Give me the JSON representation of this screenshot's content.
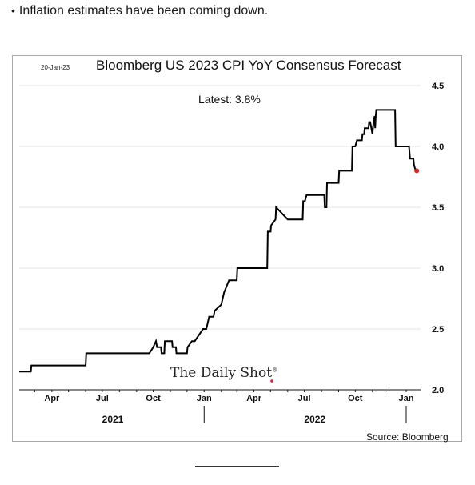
{
  "bullet": "Inflation estimates have been coming down.",
  "chart_data": {
    "type": "line",
    "title": "Bloomberg US 2023 CPI YoY Consensus Forecast",
    "date_stamp": "20-Jan-23",
    "annotation": "Latest:  3.8%",
    "source": "Source: Bloomberg",
    "watermark": "The Daily Shot",
    "watermark_mark": "®",
    "ylim": [
      2.0,
      4.5
    ],
    "y_ticks": [
      "4.5",
      "4.0",
      "3.5",
      "3.0",
      "2.5",
      "2.0"
    ],
    "x_ticks": [
      "Apr",
      "Jul",
      "Oct",
      "Jan",
      "Apr",
      "Jul",
      "Oct",
      "Jan"
    ],
    "year_labels": [
      "2021",
      "2022"
    ],
    "grid": true,
    "latest_marker_color": "#e02020",
    "line_color": "#000000",
    "series": [
      {
        "x": [
          "2021-02-01",
          "2021-02-22",
          "2021-02-23",
          "2021-06-01",
          "2021-06-02",
          "2021-09-24",
          "2021-10-01",
          "2021-10-06",
          "2021-10-08",
          "2021-10-15",
          "2021-10-16",
          "2021-10-21",
          "2021-10-22",
          "2021-11-04",
          "2021-11-05",
          "2021-11-11",
          "2021-11-12",
          "2021-12-01",
          "2021-12-02",
          "2021-12-10",
          "2021-12-15",
          "2021-12-30",
          "2022-01-05",
          "2022-01-10",
          "2022-01-12",
          "2022-01-18",
          "2022-01-20",
          "2022-02-01",
          "2022-02-06",
          "2022-02-15",
          "2022-02-17",
          "2022-03-01",
          "2022-03-02",
          "2022-03-20",
          "2022-03-22",
          "2022-03-29",
          "2022-04-01",
          "2022-04-02",
          "2022-04-04",
          "2022-04-05",
          "2022-04-08",
          "2022-04-09",
          "2022-04-25",
          "2022-04-26",
          "2022-05-01",
          "2022-05-02",
          "2022-05-10",
          "2022-05-11",
          "2022-06-01",
          "2022-06-02",
          "2022-06-10",
          "2022-06-11",
          "2022-06-15",
          "2022-06-18",
          "2022-06-20",
          "2022-06-28",
          "2022-06-29",
          "2022-07-02",
          "2022-07-05",
          "2022-07-08",
          "2022-07-15",
          "2022-07-20",
          "2022-07-30",
          "2022-08-01",
          "2022-08-06",
          "2022-08-07",
          "2022-08-10",
          "2022-08-11",
          "2022-08-13",
          "2022-08-14",
          "2022-09-01",
          "2022-09-02",
          "2022-09-25",
          "2022-09-26",
          "2022-10-01",
          "2022-10-04",
          "2022-10-13",
          "2022-10-14",
          "2022-10-17",
          "2022-10-18",
          "2022-10-25",
          "2022-10-26",
          "2022-10-28",
          "2022-11-01",
          "2022-11-03",
          "2022-11-05",
          "2022-11-06",
          "2022-11-07",
          "2022-11-08",
          "2022-11-09",
          "2022-11-11",
          "2022-11-13",
          "2022-11-15",
          "2022-11-16",
          "2022-12-12",
          "2022-12-13",
          "2022-12-14",
          "2023-01-06",
          "2023-01-07",
          "2023-01-08",
          "2023-01-14",
          "2023-01-15",
          "2023-01-18",
          "2023-01-20"
        ],
        "values": [
          2.15,
          2.15,
          2.2,
          2.2,
          2.3,
          2.3,
          2.35,
          2.4,
          2.35,
          2.35,
          2.3,
          2.3,
          2.4,
          2.4,
          2.35,
          2.35,
          2.3,
          2.3,
          2.35,
          2.4,
          2.4,
          2.5,
          2.5,
          2.6,
          2.6,
          2.6,
          2.65,
          2.7,
          2.8,
          2.9,
          2.9,
          2.9,
          3.0,
          3.0,
          3.0,
          3.0,
          3.0,
          3.0,
          3.0,
          3.0,
          3.0,
          3.0,
          3.0,
          3.3,
          3.3,
          3.35,
          3.4,
          3.5,
          3.4,
          3.4,
          3.4,
          3.4,
          3.4,
          3.4,
          3.4,
          3.4,
          3.55,
          3.55,
          3.6,
          3.6,
          3.6,
          3.6,
          3.6,
          3.6,
          3.6,
          3.5,
          3.5,
          3.7,
          3.7,
          3.7,
          3.7,
          3.8,
          3.8,
          4.0,
          4.0,
          4.05,
          4.05,
          4.1,
          4.1,
          4.15,
          4.15,
          4.2,
          4.2,
          4.1,
          4.2,
          4.25,
          4.15,
          4.25,
          4.3,
          4.3,
          4.3,
          4.3,
          4.3,
          4.3,
          4.3,
          4.0,
          4.0,
          4.0,
          3.95,
          3.9,
          3.9,
          3.85,
          3.8,
          3.8
        ]
      }
    ]
  }
}
